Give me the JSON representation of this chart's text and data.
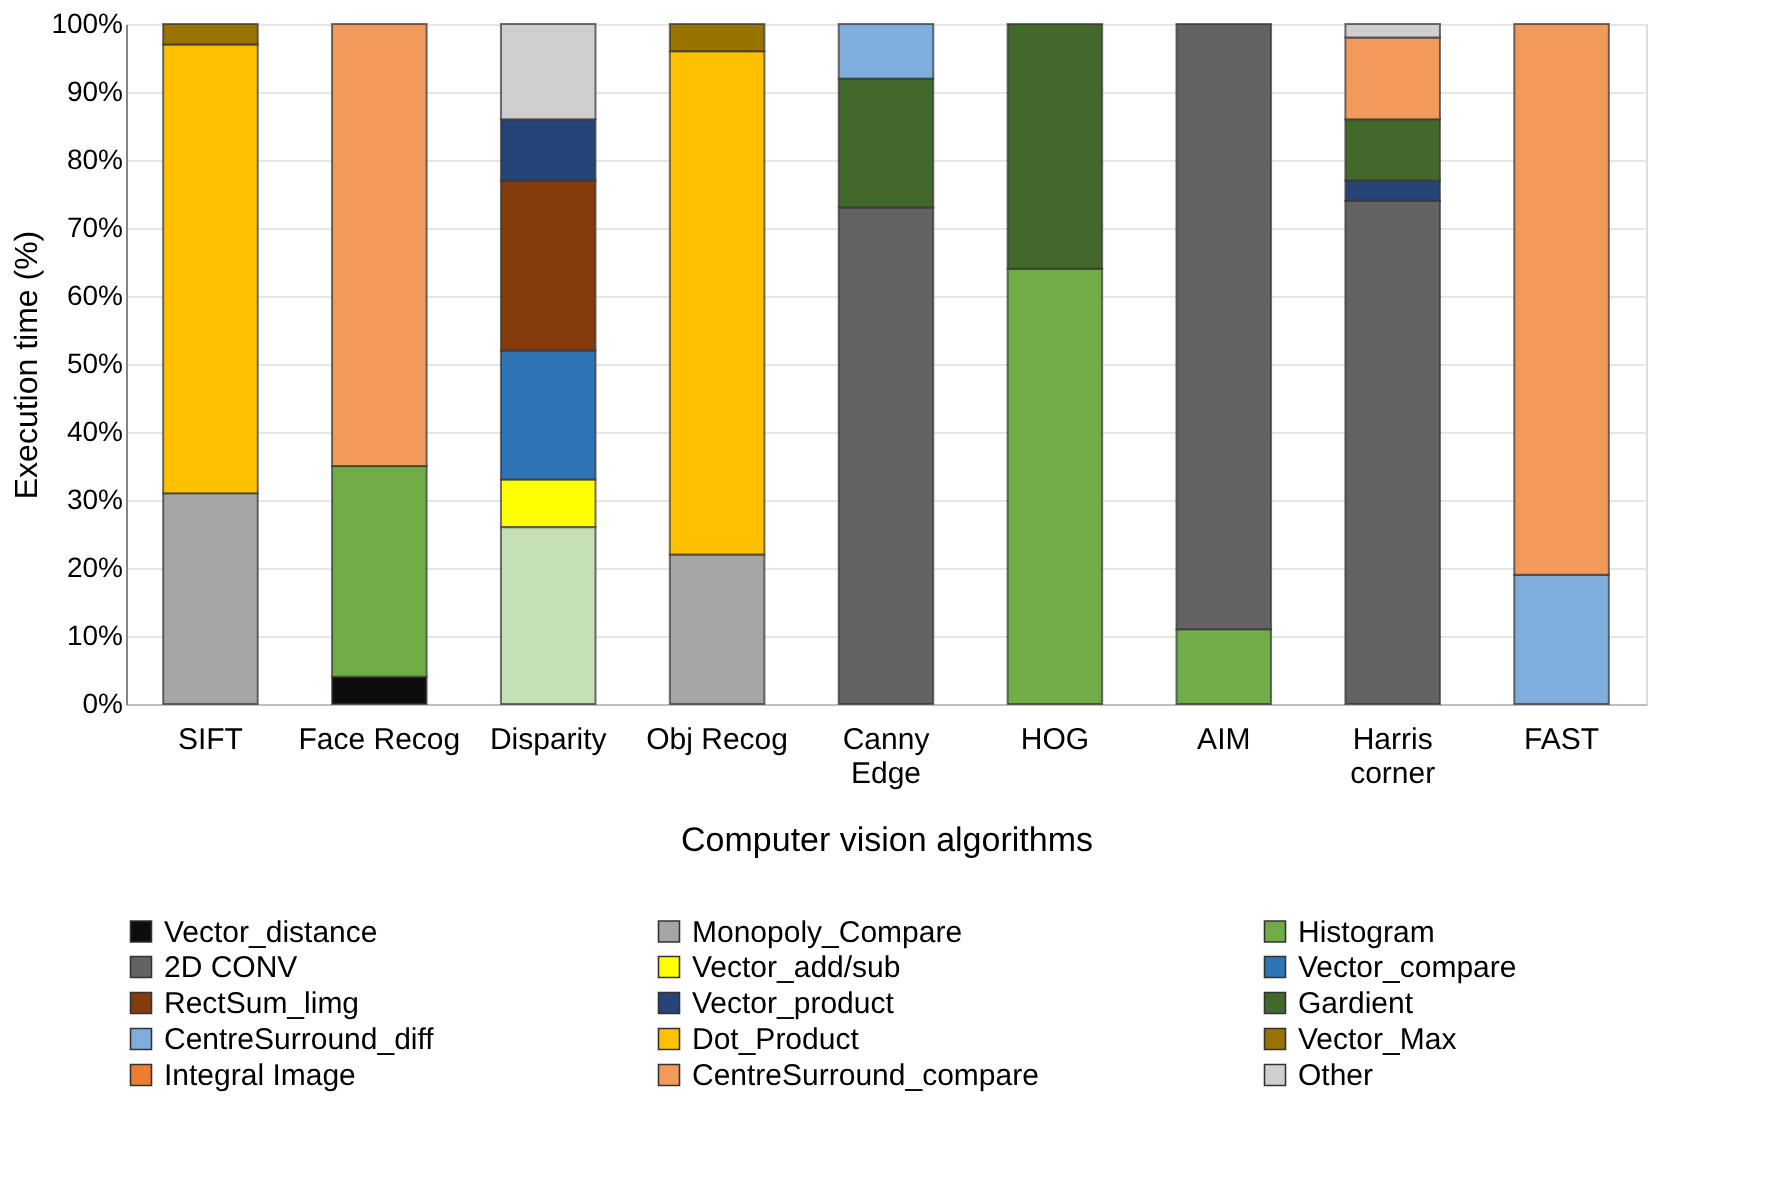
{
  "chart_data": {
    "type": "bar",
    "stacked": true,
    "xlabel": "Computer vision algorithms",
    "ylabel": "Execution time (%)",
    "categories": [
      "SIFT",
      "Face Recog",
      "Disparity",
      "Obj Recog",
      "Canny\nEdge",
      "HOG",
      "AIM",
      "Harris\ncorner",
      "FAST"
    ],
    "ylim": [
      0,
      100
    ],
    "yticks": [
      {
        "value": 0,
        "label": "0%"
      },
      {
        "value": 10,
        "label": "10%"
      },
      {
        "value": 20,
        "label": "20%"
      },
      {
        "value": 30,
        "label": "30%"
      },
      {
        "value": 40,
        "label": "40%"
      },
      {
        "value": 50,
        "label": "50%"
      },
      {
        "value": 60,
        "label": "60%"
      },
      {
        "value": 70,
        "label": "70%"
      },
      {
        "value": 80,
        "label": "80%"
      },
      {
        "value": 90,
        "label": "90%"
      },
      {
        "value": 100,
        "label": "100%"
      }
    ],
    "grid": "y",
    "legend": "bottom",
    "series": [
      {
        "name": "Vector_distance",
        "color": "#0d0d0d",
        "values": [
          null,
          4,
          null,
          null,
          null,
          null,
          null,
          null,
          null
        ]
      },
      {
        "name": "Monopoly_Compare",
        "color": "#a5a5a5",
        "values": [
          31,
          null,
          null,
          22,
          null,
          null,
          null,
          null,
          null
        ]
      },
      {
        "color": "#c5e0b4",
        "values": [
          null,
          null,
          26,
          null,
          null,
          null,
          null,
          null,
          null
        ]
      },
      {
        "name": "Histogram",
        "color": "#70ad47",
        "values": [
          null,
          31,
          null,
          null,
          null,
          64,
          11,
          null,
          null
        ]
      },
      {
        "name": "2D CONV",
        "color": "#636363",
        "values": [
          null,
          null,
          null,
          null,
          73,
          null,
          89,
          74,
          null
        ]
      },
      {
        "name": "Vector_add/sub",
        "color": "#ffff00",
        "values": [
          null,
          null,
          7,
          null,
          null,
          null,
          null,
          null,
          null
        ]
      },
      {
        "name": "Vector_compare",
        "color": "#2e75b6",
        "values": [
          null,
          null,
          19,
          null,
          null,
          null,
          null,
          null,
          null
        ]
      },
      {
        "name": "RectSum_limg",
        "color": "#843c0c",
        "values": [
          null,
          null,
          25,
          null,
          null,
          null,
          null,
          null,
          null
        ]
      },
      {
        "name": "Vector_product",
        "color": "#264478",
        "values": [
          null,
          null,
          9,
          null,
          null,
          null,
          null,
          3,
          null
        ]
      },
      {
        "name": "Gardient",
        "color": "#43682b",
        "values": [
          null,
          null,
          null,
          null,
          19,
          36,
          null,
          9,
          null
        ]
      },
      {
        "name": "CentreSurround_diff",
        "color": "#7faedd",
        "values": [
          null,
          null,
          null,
          null,
          8,
          null,
          null,
          null,
          19
        ]
      },
      {
        "name": "Dot_Product",
        "color": "#ffc000",
        "values": [
          66,
          null,
          null,
          74,
          null,
          null,
          null,
          null,
          null
        ]
      },
      {
        "name": "Vector_Max",
        "color": "#997300",
        "values": [
          3,
          null,
          null,
          4,
          null,
          null,
          null,
          null,
          null
        ]
      },
      {
        "name": "Integral Image",
        "color": "#ed7d31",
        "values": [
          null,
          null,
          null,
          null,
          null,
          null,
          null,
          null,
          null
        ]
      },
      {
        "name": "CentreSurround_compare",
        "color": "#f29a5c",
        "values": [
          null,
          65,
          null,
          null,
          null,
          null,
          null,
          12,
          81
        ]
      },
      {
        "name": "Other",
        "color": "#d0cece",
        "values": [
          null,
          null,
          14,
          null,
          null,
          null,
          null,
          2,
          null
        ]
      }
    ]
  }
}
